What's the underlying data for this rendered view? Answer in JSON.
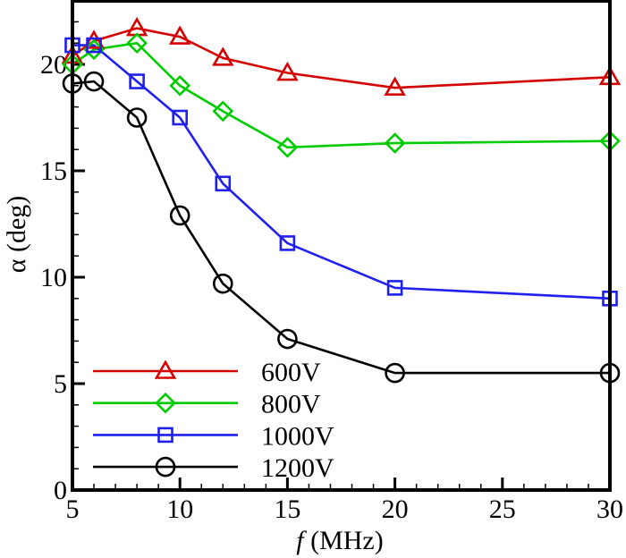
{
  "chart_data": {
    "type": "line",
    "title": "",
    "xlabel_italic": "f",
    "xlabel_rest": "(MHz)",
    "ylabel": "α (deg)",
    "xlim": [
      5,
      30
    ],
    "ylim": [
      0,
      23
    ],
    "x_major_ticks": [
      5,
      10,
      15,
      20,
      25,
      30
    ],
    "y_major_ticks": [
      0,
      5,
      10,
      15,
      20
    ],
    "x_minor_step": 1,
    "y_minor_step": 1,
    "grid": false,
    "legend_position": "bottom-left",
    "x": [
      5,
      6,
      8,
      10,
      12,
      15,
      20,
      30
    ],
    "series": [
      {
        "name": "600V",
        "color": "#d40000",
        "marker": "triangle",
        "values": [
          20.4,
          21.1,
          21.7,
          21.3,
          20.3,
          19.6,
          18.9,
          19.4
        ]
      },
      {
        "name": "800V",
        "color": "#00cc00",
        "marker": "diamond",
        "values": [
          20.0,
          20.7,
          21.0,
          19.0,
          17.8,
          16.1,
          16.3,
          16.4
        ]
      },
      {
        "name": "1000V",
        "color": "#2020ee",
        "marker": "square",
        "values": [
          20.9,
          20.9,
          19.2,
          17.5,
          14.4,
          11.6,
          9.5,
          9.0
        ]
      },
      {
        "name": "1200V",
        "color": "#000000",
        "marker": "circle",
        "values": [
          19.1,
          19.2,
          17.5,
          12.9,
          9.7,
          7.1,
          5.5,
          5.5
        ]
      }
    ]
  }
}
